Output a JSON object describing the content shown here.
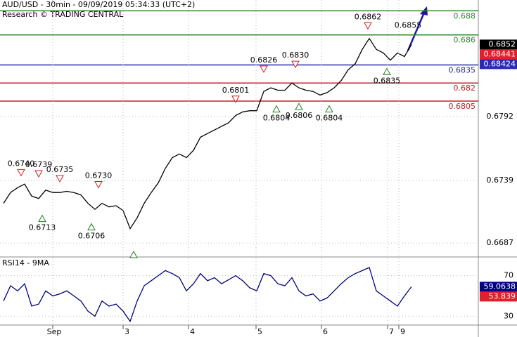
{
  "chart_data": [
    {
      "type": "line",
      "title": "AUD/USD - 30min - 09/09/2019 05:34:33 (UTC+2)",
      "subtitle": "Research © TRADING CENTRAL",
      "x": [
        0,
        1,
        2,
        3,
        4,
        5,
        6,
        7,
        8,
        9,
        10,
        11,
        12,
        13,
        14,
        15,
        16,
        17,
        18,
        19,
        20,
        21,
        22,
        23,
        24,
        25,
        26,
        27,
        28,
        29,
        30,
        31,
        32,
        33,
        34,
        35,
        36,
        37,
        38,
        39,
        40,
        41,
        42,
        43,
        44,
        45,
        46,
        47,
        48,
        49,
        50,
        51,
        52,
        53,
        54,
        55,
        56,
        57,
        58
      ],
      "series": [
        {
          "color": "#000000",
          "values": [
            0.672,
            0.6729,
            0.6733,
            0.6736,
            0.6726,
            0.6724,
            0.6731,
            0.6729,
            0.6729,
            0.673,
            0.6729,
            0.6727,
            0.672,
            0.6715,
            0.672,
            0.6717,
            0.6718,
            0.6714,
            0.6699,
            0.6708,
            0.672,
            0.6729,
            0.6737,
            0.6749,
            0.6758,
            0.6761,
            0.6758,
            0.6764,
            0.6775,
            0.6778,
            0.6781,
            0.6784,
            0.6787,
            0.6793,
            0.6796,
            0.6797,
            0.6797,
            0.6813,
            0.6816,
            0.6814,
            0.6814,
            0.682,
            0.6816,
            0.6814,
            0.6813,
            0.681,
            0.6812,
            0.6816,
            0.6822,
            0.6831,
            0.6836,
            0.6848,
            0.6857,
            0.6848,
            0.6845,
            0.6839,
            0.6845,
            0.6842,
            0.6852
          ]
        }
      ],
      "xlim": [
        -0.5,
        67.5
      ],
      "ylim": [
        0.6676,
        0.6889
      ],
      "yticks": [
        0.6687,
        0.6739,
        0.6792
      ],
      "grid": true,
      "levels": [
        {
          "value": 0.688,
          "color": "#2e8b2e"
        },
        {
          "value": 0.686,
          "color": "#2e8b2e"
        },
        {
          "value": 0.6835,
          "color": "#2b2bb0"
        },
        {
          "value": 0.682,
          "color": "#c0202a"
        },
        {
          "value": 0.6805,
          "color": "#c0202a"
        }
      ],
      "price_tags": [
        {
          "value": 0.6852,
          "color": "#000000"
        },
        {
          "value": 0.68441,
          "color": "#e0202a"
        },
        {
          "value": 0.68424,
          "color": "#2b2bb0"
        }
      ],
      "annotations": [
        {
          "x": 2.5,
          "value": {
            "value": 0.674,
            "label": "0.6740"
          },
          "dir": "down"
        },
        {
          "x": 5,
          "value": 0.6739,
          "dir": "down"
        },
        {
          "x": 8,
          "value": 0.6735,
          "dir": "down"
        },
        {
          "x": 13.5,
          "value": {
            "value": 0.673,
            "label": "0.6730"
          },
          "dir": "down"
        },
        {
          "x": 33,
          "value": 0.6801,
          "dir": "down"
        },
        {
          "x": 37,
          "value": 0.6826,
          "dir": "down"
        },
        {
          "x": 41.5,
          "value": {
            "value": 0.683,
            "label": "0.6830"
          },
          "dir": "down"
        },
        {
          "x": 51.8,
          "value": 0.6862,
          "dir": "down"
        },
        {
          "x": 57.5,
          "value": 0.6855,
          "dir": "label"
        },
        {
          "x": 5.5,
          "value": 0.6713,
          "dir": "up"
        },
        {
          "x": 12.5,
          "value": 0.6706,
          "dir": "up"
        },
        {
          "x": 18.5,
          "value": 0.6683,
          "dir": "mark"
        },
        {
          "x": 38.8,
          "value": 0.6804,
          "dir": "up"
        },
        {
          "x": 42,
          "value": 0.6806,
          "dir": "up"
        },
        {
          "x": 46.3,
          "value": 0.6804,
          "dir": "up"
        },
        {
          "x": 54.5,
          "value": 0.6835,
          "dir": "up"
        }
      ]
    },
    {
      "type": "line",
      "title": "RSI14 - 9MA",
      "x": [
        0,
        1,
        2,
        3,
        4,
        5,
        6,
        7,
        8,
        9,
        10,
        11,
        12,
        13,
        14,
        15,
        16,
        17,
        18,
        19,
        20,
        21,
        22,
        23,
        24,
        25,
        26,
        27,
        28,
        29,
        30,
        31,
        32,
        33,
        34,
        35,
        36,
        37,
        38,
        39,
        40,
        41,
        42,
        43,
        44,
        45,
        46,
        47,
        48,
        49,
        50,
        51,
        52,
        53,
        54,
        55,
        56,
        57,
        58
      ],
      "series": [
        {
          "color": "#000080",
          "values": [
            45,
            60,
            55,
            62,
            40,
            42,
            55,
            50,
            52,
            55,
            50,
            45,
            35,
            30,
            45,
            40,
            42,
            35,
            25,
            45,
            60,
            65,
            70,
            75,
            72,
            68,
            55,
            62,
            72,
            65,
            68,
            62,
            66,
            70,
            65,
            58,
            55,
            72,
            70,
            62,
            60,
            68,
            55,
            50,
            52,
            45,
            48,
            55,
            62,
            68,
            72,
            75,
            78,
            55,
            50,
            45,
            40,
            50,
            59.0638
          ]
        }
      ],
      "xlim": [
        -0.5,
        67.5
      ],
      "ylim": [
        22,
        87
      ],
      "yticks": [
        30,
        70
      ],
      "xticks": [
        {
          "value": 7,
          "label": "Sep"
        },
        {
          "value": 17,
          "label": "3"
        },
        {
          "value": 26.3,
          "label": "4"
        },
        {
          "value": 35.9,
          "label": "5"
        },
        {
          "value": 45.2,
          "label": "6"
        },
        {
          "value": 54.6,
          "label": "7"
        },
        {
          "value": 56.2,
          "label": "9"
        }
      ],
      "tags": [
        {
          "value": 59.0638,
          "color": "#000080"
        },
        {
          "value": 53.839,
          "color": "#e0202a"
        }
      ]
    }
  ]
}
